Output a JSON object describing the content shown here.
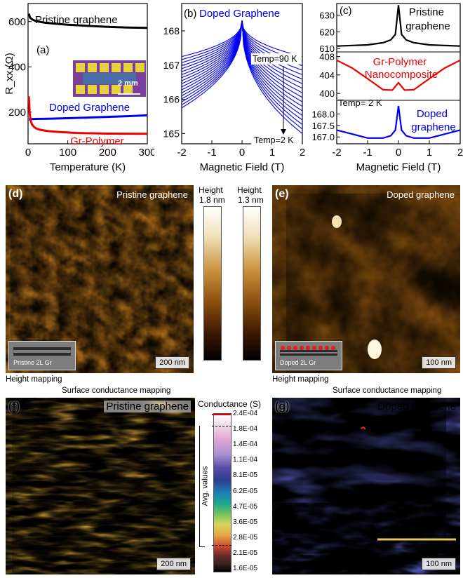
{
  "chart_data": [
    {
      "type": "line",
      "panel_label": "(a)",
      "xlabel": "Temperature (K)",
      "ylabel": "R_xx (Ω)",
      "xlim": [
        0,
        300
      ],
      "ylim": [
        60,
        680
      ],
      "xticks": [
        0,
        100,
        200,
        300
      ],
      "yticks": [
        200,
        400,
        600
      ],
      "inset_scale": "2 mm",
      "series": [
        {
          "name": "Pristine graphene",
          "color": "#000000",
          "x": [
            2,
            5,
            10,
            20,
            40,
            60,
            100,
            150,
            200,
            250,
            300
          ],
          "y": [
            635,
            618,
            610,
            602,
            596,
            592,
            586,
            581,
            577,
            574,
            572
          ]
        },
        {
          "name": "Doped Graphene",
          "color": "#0000ee",
          "x": [
            2,
            5,
            10,
            20,
            50,
            100,
            150,
            200,
            250,
            300
          ],
          "y": [
            168,
            168,
            169,
            170,
            171,
            173,
            176,
            179,
            182,
            186
          ]
        },
        {
          "name": "Gr-Polymer",
          "color": "#ee0000",
          "x": [
            2,
            4,
            7,
            10,
            15,
            20,
            30,
            50,
            80,
            120,
            200,
            300
          ],
          "y": [
            270,
            195,
            160,
            145,
            135,
            128,
            122,
            116,
            112,
            108,
            105,
            104
          ]
        }
      ]
    },
    {
      "type": "line",
      "panel_label": "(b)",
      "title": "Doped Graphene",
      "xlabel": "Magnetic Field (T)",
      "xlim": [
        -2,
        2
      ],
      "ylim": [
        164.7,
        168.8
      ],
      "xticks": [
        -2,
        -1,
        0,
        1,
        2
      ],
      "yticks": [
        165,
        166,
        167,
        168
      ],
      "annotations": [
        "Temp=90 K",
        "Temp=2 K"
      ],
      "series": [
        {
          "name": "Temp=90 K",
          "color": "#0000ee",
          "x": [
            -2,
            0,
            2
          ],
          "y": [
            167.25,
            168.3,
            167.25
          ]
        },
        {
          "name": "Temp=2 K",
          "color": "#0000ee",
          "x": [
            -2,
            0,
            2
          ],
          "y": [
            165.75,
            168.3,
            165.0
          ]
        }
      ],
      "n_curves": 18
    },
    {
      "type": "line",
      "panel_label": "(c)",
      "xlabel": "Magnetic Field (T)",
      "xlim": [
        -2,
        2
      ],
      "xticks": [
        -2,
        -1,
        0,
        1,
        2
      ],
      "annotation": "Temp= 2 K",
      "subplots": [
        {
          "name": "Pristine graphene",
          "color": "#000000",
          "ylim": [
            608,
            637
          ],
          "yticks": [
            610,
            620,
            630
          ],
          "x": [
            -2,
            -1,
            -0.5,
            -0.25,
            -0.1,
            0,
            0.1,
            0.25,
            0.5,
            1,
            2
          ],
          "y": [
            611.5,
            612.2,
            613.5,
            615.2,
            618.5,
            636,
            618.5,
            615.2,
            613.5,
            612.2,
            611.5
          ]
        },
        {
          "name": "Gr-Polymer Nanocomposite",
          "color": "#ee0000",
          "ylim": [
            398.5,
            409
          ],
          "yticks": [
            400,
            404,
            408
          ],
          "x": [
            -2,
            -1.5,
            -1,
            -0.5,
            -0.2,
            0,
            0.2,
            0.5,
            1,
            1.5,
            2
          ],
          "y": [
            407.2,
            405.5,
            403.2,
            400.8,
            400.7,
            402.3,
            400.7,
            400.8,
            403.2,
            405.5,
            407.2
          ]
        },
        {
          "name": "Doped graphene",
          "color": "#0000ee",
          "ylim": [
            166.7,
            168.6
          ],
          "yticks": [
            167.0,
            167.5,
            168.0
          ],
          "x": [
            -2,
            -1,
            -0.5,
            -0.25,
            -0.1,
            0,
            0.1,
            0.25,
            0.5,
            1,
            2
          ],
          "y": [
            167.3,
            166.95,
            166.95,
            167.05,
            167.3,
            168.35,
            167.3,
            167.05,
            166.95,
            166.95,
            167.3
          ]
        }
      ]
    }
  ],
  "afm": {
    "d": {
      "label": "(d)",
      "title": "Pristine graphene",
      "scale": "200 nm",
      "inset": "Pristine 2L Gr"
    },
    "e": {
      "label": "(e)",
      "title": "Doped graphene",
      "scale": "100 nm",
      "inset": "Doped 2L Gr"
    },
    "height_caption_left": "Height mapping",
    "height_caption_right": "Height mapping"
  },
  "height_bars": [
    {
      "title": "Height",
      "value": "1.8 nm"
    },
    {
      "title": "Height",
      "value": "1.3 nm"
    }
  ],
  "conductance": {
    "caption_left": "Surface conductance mapping",
    "caption_right": "Surface conductance mapping",
    "f": {
      "label": "(f)",
      "title": "Pristine graphene",
      "scale": "200 nm"
    },
    "g": {
      "label": "(g)",
      "title": "Doped graphene",
      "scale": "100 nm"
    },
    "bar_title": "Conductance (S)",
    "avg_label": "Avg. values",
    "ticks": [
      "2.4E-04",
      "1.8E-04",
      "1.4E-04",
      "1.1E-04",
      "8.1E-05",
      "6.2E-05",
      "4.7E-05",
      "3.6E-05",
      "2.8E-05",
      "2.1E-05",
      "1.6E-05"
    ]
  }
}
